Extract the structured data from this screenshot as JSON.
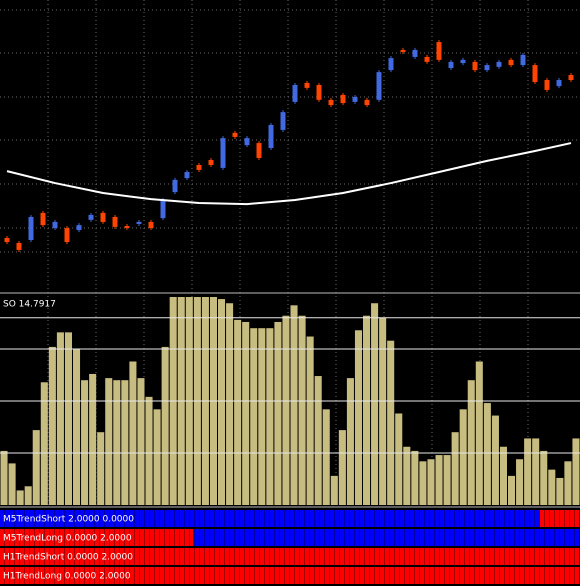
{
  "price_pane": {
    "ylim": [
      0,
      100
    ],
    "up_color": "#4169e1",
    "down_color": "#ff4500",
    "candles": [
      {
        "open": 18.5,
        "close": 17.1
      },
      {
        "open": 16.8,
        "close": 14.4
      },
      {
        "open": 17.8,
        "close": 25.7
      },
      {
        "open": 27.1,
        "close": 22.9
      },
      {
        "open": 21.9,
        "close": 24.0
      },
      {
        "open": 21.9,
        "close": 17.1
      },
      {
        "open": 21.2,
        "close": 22.9
      },
      {
        "open": 24.7,
        "close": 26.4
      },
      {
        "open": 27.1,
        "close": 24.0
      },
      {
        "open": 25.7,
        "close": 22.3
      },
      {
        "open": 22.6,
        "close": 21.9
      },
      {
        "open": 23.3,
        "close": 24.0
      },
      {
        "open": 24.0,
        "close": 21.9
      },
      {
        "open": 25.3,
        "close": 31.5
      },
      {
        "open": 34.2,
        "close": 38.4
      },
      {
        "open": 39.0,
        "close": 41.1
      },
      {
        "open": 43.5,
        "close": 41.8
      },
      {
        "open": 45.2,
        "close": 43.5
      },
      {
        "open": 42.5,
        "close": 52.7
      },
      {
        "open": 54.5,
        "close": 53.1
      },
      {
        "open": 50.3,
        "close": 52.7
      },
      {
        "open": 51.0,
        "close": 45.9
      },
      {
        "open": 49.3,
        "close": 57.2
      },
      {
        "open": 55.5,
        "close": 61.6
      },
      {
        "open": 65.1,
        "close": 70.9
      },
      {
        "open": 71.6,
        "close": 69.9
      },
      {
        "open": 70.9,
        "close": 65.8
      },
      {
        "open": 65.8,
        "close": 64.0
      },
      {
        "open": 67.5,
        "close": 64.7
      },
      {
        "open": 65.1,
        "close": 66.8
      },
      {
        "open": 65.8,
        "close": 64.0
      },
      {
        "open": 65.8,
        "close": 75.3
      },
      {
        "open": 76.0,
        "close": 80.1
      },
      {
        "open": 82.9,
        "close": 82.2
      },
      {
        "open": 80.5,
        "close": 82.9
      },
      {
        "open": 80.5,
        "close": 78.8
      },
      {
        "open": 85.6,
        "close": 79.5
      },
      {
        "open": 76.7,
        "close": 78.8
      },
      {
        "open": 78.4,
        "close": 79.5
      },
      {
        "open": 78.8,
        "close": 76.0
      },
      {
        "open": 76.0,
        "close": 77.7
      },
      {
        "open": 77.1,
        "close": 78.8
      },
      {
        "open": 79.5,
        "close": 77.7
      },
      {
        "open": 77.7,
        "close": 81.2
      },
      {
        "open": 77.7,
        "close": 71.9
      },
      {
        "open": 72.6,
        "close": 69.2
      },
      {
        "open": 70.5,
        "close": 72.6
      },
      {
        "open": 74.3,
        "close": 72.6
      }
    ],
    "ma": {
      "color": "#ffffff",
      "x": [
        0,
        4,
        8,
        12,
        16,
        20,
        24,
        28,
        32,
        36,
        40,
        44,
        47
      ],
      "values": [
        41.4,
        37.3,
        33.9,
        31.8,
        30.5,
        30.1,
        31.5,
        33.9,
        37.3,
        41.1,
        44.9,
        48.3,
        51.0
      ]
    }
  },
  "oscillator": {
    "label": "SO 14.7917",
    "ylim": [
      0,
      100
    ],
    "color": "#c8bd80",
    "levels": [
      90,
      75,
      50,
      25
    ],
    "values": [
      26,
      20,
      7,
      9,
      36,
      59,
      76,
      83,
      83,
      75,
      60,
      63,
      35,
      61,
      60,
      60,
      69,
      61,
      52,
      46,
      76,
      100,
      100,
      100,
      100,
      100,
      100,
      99,
      97,
      89,
      88,
      85,
      85,
      85,
      88,
      91,
      96,
      91,
      81,
      62,
      46,
      14,
      36,
      61,
      84,
      91,
      97,
      90,
      79,
      44,
      28,
      26,
      21,
      22,
      24,
      24,
      35,
      46,
      60,
      69,
      49,
      43,
      28,
      14,
      22,
      32,
      32,
      26,
      17,
      13,
      21,
      32
    ]
  },
  "strips": [
    {
      "label": "M5TrendShort 2.0000 0.0000",
      "segments": [
        {
          "color": "#0000ff",
          "bars": 67
        },
        {
          "color": "#ff0000",
          "bars": 5
        }
      ]
    },
    {
      "label": "M5TrendLong 0.0000 2.0000",
      "segments": [
        {
          "color": "#ff0000",
          "bars": 24
        },
        {
          "color": "#0000ff",
          "bars": 48
        }
      ]
    },
    {
      "label": "H1TrendShort 0.0000 2.0000",
      "segments": [
        {
          "color": "#ff0000",
          "bars": 72
        }
      ]
    },
    {
      "label": "H1TrendLong 0.0000 2.0000",
      "segments": [
        {
          "color": "#ff0000",
          "bars": 72
        }
      ]
    }
  ]
}
